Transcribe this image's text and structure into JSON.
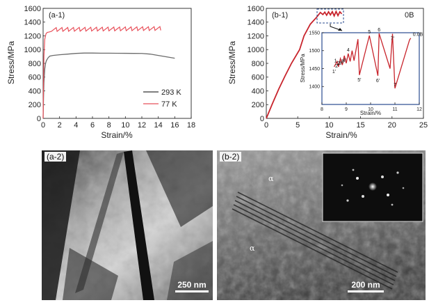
{
  "chart_data": [
    {
      "id": "a1",
      "type": "line",
      "panel_label": "(a-1)",
      "xlabel": "Strain/%",
      "ylabel": "Stress/MPa",
      "xlim": [
        0,
        18
      ],
      "ylim": [
        0,
        1600
      ],
      "xticks": [
        0,
        2,
        4,
        6,
        8,
        10,
        12,
        14,
        16,
        18
      ],
      "yticks": [
        0,
        200,
        400,
        600,
        800,
        1000,
        1200,
        1400,
        1600
      ],
      "legend_position": "bottom-right",
      "series": [
        {
          "name": "293 K",
          "color": "#6b6b6b",
          "x": [
            0,
            0.05,
            0.1,
            0.2,
            0.3,
            0.4,
            0.6,
            0.8,
            1.2,
            2,
            3,
            4,
            5,
            6,
            7,
            8,
            9,
            10,
            11,
            12,
            13,
            14,
            15,
            16
          ],
          "y": [
            0,
            300,
            520,
            720,
            800,
            840,
            880,
            905,
            915,
            925,
            935,
            945,
            950,
            950,
            948,
            948,
            947,
            946,
            945,
            944,
            935,
            915,
            895,
            875
          ]
        },
        {
          "name": "77 K",
          "color": "#e8505a",
          "x": [
            0,
            0.05,
            0.1,
            0.2,
            0.35,
            0.5,
            0.7,
            1.0,
            14.0
          ],
          "y": [
            0,
            500,
            900,
            1150,
            1230,
            1250,
            1255,
            1265,
            1280
          ],
          "serration": {
            "amplitude": 55,
            "period": 0.7
          }
        }
      ]
    },
    {
      "id": "b1",
      "type": "line",
      "panel_label": "(b-1)",
      "corner_label": "0B",
      "xlabel": "Strain/%",
      "ylabel": "Stress/MPa",
      "xlim": [
        0,
        25
      ],
      "ylim": [
        0,
        1600
      ],
      "xticks": [
        0,
        5,
        10,
        15,
        20,
        25
      ],
      "yticks": [
        0,
        200,
        400,
        600,
        800,
        1000,
        1200,
        1400,
        1600
      ],
      "series": [
        {
          "name": "",
          "color": "#c8242c",
          "x": [
            0,
            1,
            2,
            3,
            4,
            5.3,
            6,
            7,
            8,
            8.6,
            9.0,
            9.3,
            9.6,
            9.9,
            10.2,
            10.5,
            10.8,
            11.1,
            11.4,
            11.7,
            12.0
          ],
          "y": [
            0,
            220,
            430,
            620,
            800,
            1000,
            1200,
            1370,
            1470,
            1540,
            1510,
            1545,
            1500,
            1550,
            1505,
            1552,
            1490,
            1555,
            1495,
            1550,
            1520
          ]
        }
      ],
      "inset": {
        "xlabel": "Strain/%",
        "ylabel": "Stress/MPa",
        "xlim": [
          8,
          12
        ],
        "ylim": [
          1350,
          1550
        ],
        "xticks": [
          8,
          9,
          10,
          11,
          12
        ],
        "yticks": [
          1400,
          1450,
          1500,
          1550
        ],
        "x": [
          8.5,
          8.56,
          8.62,
          8.68,
          8.76,
          8.84,
          8.92,
          9.0,
          9.08,
          9.16,
          9.24,
          9.32,
          9.48,
          9.54,
          9.95,
          10.3,
          10.35,
          10.8,
          10.9,
          11.0,
          11.6,
          11.65
        ],
        "y": [
          1455,
          1462,
          1470,
          1455,
          1478,
          1460,
          1486,
          1465,
          1492,
          1470,
          1500,
          1472,
          1532,
          1432,
          1542,
          1430,
          1548,
          1450,
          1547,
          1395,
          1530,
          1535
        ],
        "annotations": [
          "1",
          "2",
          "3",
          "4",
          "5",
          "6",
          "7",
          "0.0B",
          "1'",
          "2'",
          "3'",
          "4'",
          "5'",
          "6'",
          "7'"
        ]
      }
    }
  ],
  "images": [
    {
      "panel_label": "(a-2)",
      "scale_bar": "250 nm"
    },
    {
      "panel_label": "(b-2)",
      "scale_bar": "200 nm",
      "phase_labels": [
        "α",
        "α"
      ]
    }
  ]
}
